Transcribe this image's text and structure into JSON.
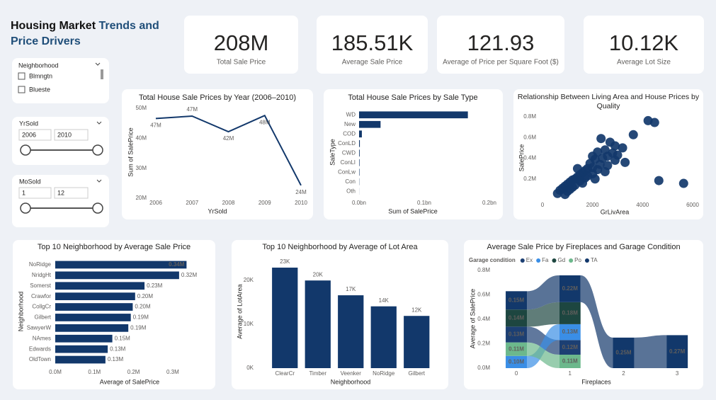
{
  "header": {
    "title_dark": "Housing Market",
    "title_accent": "Trends and Price Drivers"
  },
  "kpis": [
    {
      "value": "208M",
      "label": "Total Sale Price"
    },
    {
      "value": "185.51K",
      "label": "Average Sale Price"
    },
    {
      "value": "121.93",
      "label": "Average of Price per Square Foot ($)"
    },
    {
      "value": "10.12K",
      "label": "Average Lot Size"
    }
  ],
  "slicers": [
    {
      "title": "Neighborhood",
      "items": [
        "Blmngtn",
        "Blueste"
      ]
    },
    {
      "title": "YrSold",
      "from": "2006",
      "to": "2010"
    },
    {
      "title": "MoSold",
      "from": "1",
      "to": "12"
    }
  ],
  "chart_data": [
    {
      "type": "line",
      "title": "Total House Sale Prices by Year (2006–2010)",
      "x_label": "YrSold",
      "y_label": "Sum of SalePrice",
      "x": [
        2006,
        2007,
        2008,
        2009,
        2010
      ],
      "values": [
        46600000,
        47400000,
        42200000,
        47600000,
        24300000
      ],
      "value_labels": [
        "47M",
        "47M",
        "42M",
        "48M",
        "24M"
      ],
      "color": "#12386b",
      "xlim": [
        2006,
        2010
      ],
      "xticks": [
        2006,
        2007,
        2008,
        2009,
        2010
      ],
      "ylim": [
        20000000,
        50000000
      ],
      "yticks": [
        {
          "value": 20000000,
          "label": "20M"
        },
        {
          "value": 30000000,
          "label": "30M"
        },
        {
          "value": 40000000,
          "label": "40M"
        },
        {
          "value": 50000000,
          "label": "50M"
        }
      ]
    },
    {
      "type": "bar",
      "orientation": "horizontal",
      "title": "Total House Sale Prices by Sale Type",
      "x_label": "Sum of SalePrice",
      "y_label": "SaleType",
      "categories": [
        "WD",
        "New",
        "COD",
        "ConLD",
        "CWD",
        "ConLI",
        "ConLw",
        "Con",
        "Oth"
      ],
      "values": [
        167000000,
        33000000,
        4300000,
        1200000,
        900000,
        700000,
        600000,
        300000,
        100000
      ],
      "color": "#12386b",
      "xlim": [
        0,
        200000000
      ],
      "xticks": [
        {
          "value": 0,
          "label": "0.0bn"
        },
        {
          "value": 100000000,
          "label": "0.1bn"
        },
        {
          "value": 200000000,
          "label": "0.2bn"
        }
      ]
    },
    {
      "type": "scatter",
      "title": "Relationship Between Living Area and House Prices by Quality",
      "x_label": "GrLivArea",
      "y_label": "SalePrice",
      "color": "#12386b",
      "x": [
        4220,
        4480,
        3630,
        2340,
        2700,
        2900,
        3200,
        2500,
        2200,
        2800,
        3000,
        2600,
        2400,
        2100,
        2900,
        3300,
        1900,
        2300,
        2600,
        2000,
        1800,
        2200,
        1700,
        2500,
        1600,
        2000,
        1500,
        1800,
        1400,
        1700,
        1300,
        2100,
        1200,
        1500,
        1100,
        1600,
        1000,
        1300,
        900,
        1200,
        800,
        1100,
        700,
        1000,
        600,
        900,
        4650,
        5640,
        1400,
        2000
      ],
      "values": [
        763000,
        745000,
        627000,
        590000,
        555000,
        520000,
        500000,
        480000,
        460000,
        450000,
        430000,
        420000,
        400000,
        390000,
        380000,
        360000,
        350000,
        340000,
        330000,
        310000,
        300000,
        290000,
        280000,
        270000,
        260000,
        250000,
        240000,
        230000,
        220000,
        210000,
        200000,
        200000,
        190000,
        180000,
        170000,
        160000,
        150000,
        140000,
        130000,
        120000,
        110000,
        100000,
        90000,
        80000,
        60000,
        50000,
        184000,
        157000,
        300000,
        420000
      ],
      "xlim": [
        0,
        6000
      ],
      "xticks": [
        0,
        2000,
        4000,
        6000
      ],
      "ylim": [
        0,
        800000
      ],
      "yticks": [
        {
          "value": 200000,
          "label": "0.2M"
        },
        {
          "value": 400000,
          "label": "0.4M"
        },
        {
          "value": 600000,
          "label": "0.6M"
        },
        {
          "value": 800000,
          "label": "0.8M"
        }
      ]
    },
    {
      "type": "bar",
      "orientation": "horizontal",
      "title": "Top 10 Neighborhood by Average Sale Price",
      "x_label": "Average of SalePrice",
      "y_label": "Neighborhood",
      "categories": [
        "NoRidge",
        "NridgHt",
        "Somerst",
        "Crawfor",
        "CollgCr",
        "Gilbert",
        "SawyerW",
        "NAmes",
        "Edwards",
        "OldTown"
      ],
      "values": [
        335300,
        316300,
        228000,
        204000,
        197900,
        192900,
        186600,
        145800,
        134000,
        128200
      ],
      "value_labels": [
        "0.34M",
        "0.32M",
        "0.23M",
        "0.20M",
        "0.20M",
        "0.19M",
        "0.19M",
        "0.15M",
        "0.13M",
        "0.13M"
      ],
      "color": "#12386b",
      "xlim": [
        0,
        340000
      ],
      "xticks": [
        {
          "value": 0,
          "label": "0.0M"
        },
        {
          "value": 100000,
          "label": "0.1M"
        },
        {
          "value": 200000,
          "label": "0.2M"
        },
        {
          "value": 300000,
          "label": "0.3M"
        }
      ]
    },
    {
      "type": "bar",
      "orientation": "vertical",
      "title": "Top 10 Neighborhood by Average of Lot Area",
      "x_label": "Neighborhood",
      "y_label": "Average of LotArea",
      "categories": [
        "ClearCr",
        "Timber",
        "Veenker",
        "NoRidge",
        "Gilbert"
      ],
      "values": [
        22900,
        19970,
        16600,
        14080,
        11900
      ],
      "value_labels": [
        "23K",
        "20K",
        "17K",
        "14K",
        "12K"
      ],
      "color": "#12386b",
      "ylim": [
        0,
        25000
      ],
      "yticks": [
        {
          "value": 0,
          "label": "0K"
        },
        {
          "value": 10000,
          "label": "10K"
        },
        {
          "value": 20000,
          "label": "20K"
        }
      ]
    },
    {
      "type": "ribbon",
      "title": "Average Sale Price by Fireplaces and Garage Condition",
      "x_label": "Fireplaces",
      "y_label": "Average of SalePrice",
      "legend_title": "Garage condition",
      "categories": [
        "0",
        "1",
        "2",
        "3"
      ],
      "series": [
        {
          "name": "Ex",
          "color": "#1c3f73",
          "values": [
            130000,
            120000,
            null,
            null
          ],
          "value_labels": [
            "0.13M",
            "0.12M",
            null,
            null
          ]
        },
        {
          "name": "Fa",
          "color": "#3a8ee6",
          "values": [
            100000,
            130000,
            null,
            null
          ],
          "value_labels": [
            "0.10M",
            "0.13M",
            null,
            null
          ]
        },
        {
          "name": "Gd",
          "color": "#1d4640",
          "values": [
            140000,
            180000,
            null,
            null
          ],
          "value_labels": [
            "0.14M",
            "0.18M",
            null,
            null
          ]
        },
        {
          "name": "Po",
          "color": "#6cb88c",
          "values": [
            110000,
            110000,
            null,
            null
          ],
          "value_labels": [
            "0.11M",
            "0.11M",
            null,
            null
          ]
        },
        {
          "name": "TA",
          "color": "#12386b",
          "values": [
            150000,
            220000,
            250000,
            270000
          ],
          "value_labels": [
            "0.15M",
            "0.22M",
            "0.25M",
            "0.27M"
          ]
        }
      ],
      "ylim": [
        0,
        800000
      ],
      "yticks": [
        {
          "value": 0,
          "label": "0.0M"
        },
        {
          "value": 200000,
          "label": "0.2M"
        },
        {
          "value": 400000,
          "label": "0.4M"
        },
        {
          "value": 600000,
          "label": "0.6M"
        },
        {
          "value": 800000,
          "label": "0.8M"
        }
      ]
    }
  ]
}
